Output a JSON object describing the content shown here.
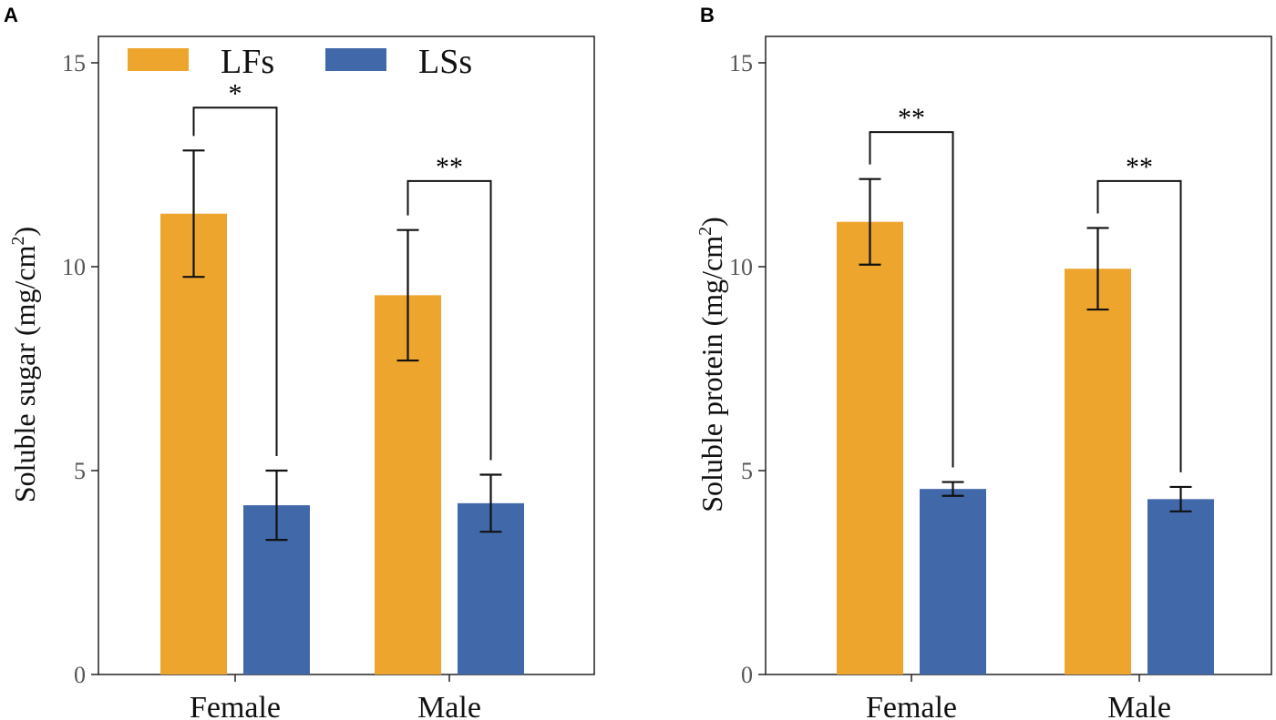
{
  "figure": {
    "legend": [
      {
        "label": "LFs",
        "color": "#EDA52D"
      },
      {
        "label": "LSs",
        "color": "#4169AA"
      }
    ]
  },
  "chart_data": [
    {
      "type": "bar",
      "panel_label": "A",
      "ylabel_main": "Soluble sugar (mg/cm",
      "ylabel_sup": "2",
      "ylabel_close": ")",
      "xlabel": "",
      "ylim": [
        0,
        15
      ],
      "yticks": [
        0,
        5,
        10,
        15
      ],
      "categories": [
        "Female",
        "Male"
      ],
      "legend_position": "top",
      "series": [
        {
          "name": "LFs",
          "color": "#EDA52D",
          "values": [
            11.3,
            9.3
          ],
          "errors": [
            1.55,
            1.6
          ]
        },
        {
          "name": "LSs",
          "color": "#4169AA",
          "values": [
            4.15,
            4.2
          ],
          "errors": [
            0.85,
            0.7
          ]
        }
      ],
      "significance": [
        {
          "category": "Female",
          "label": "*",
          "bracket_y": 13.9
        },
        {
          "category": "Male",
          "label": "**",
          "bracket_y": 12.1
        }
      ]
    },
    {
      "type": "bar",
      "panel_label": "B",
      "ylabel_main": "Soluble protein (mg/cm",
      "ylabel_sup": "2",
      "ylabel_close": ")",
      "xlabel": "",
      "ylim": [
        0,
        15
      ],
      "yticks": [
        0,
        5,
        10,
        15
      ],
      "categories": [
        "Female",
        "Male"
      ],
      "legend_position": "none",
      "series": [
        {
          "name": "LFs",
          "color": "#EDA52D",
          "values": [
            11.1,
            9.95
          ],
          "errors": [
            1.05,
            1.0
          ]
        },
        {
          "name": "LSs",
          "color": "#4169AA",
          "values": [
            4.55,
            4.3
          ],
          "errors": [
            0.17,
            0.3
          ]
        }
      ],
      "significance": [
        {
          "category": "Female",
          "label": "**",
          "bracket_y": 13.3
        },
        {
          "category": "Male",
          "label": "**",
          "bracket_y": 12.1
        }
      ]
    }
  ]
}
